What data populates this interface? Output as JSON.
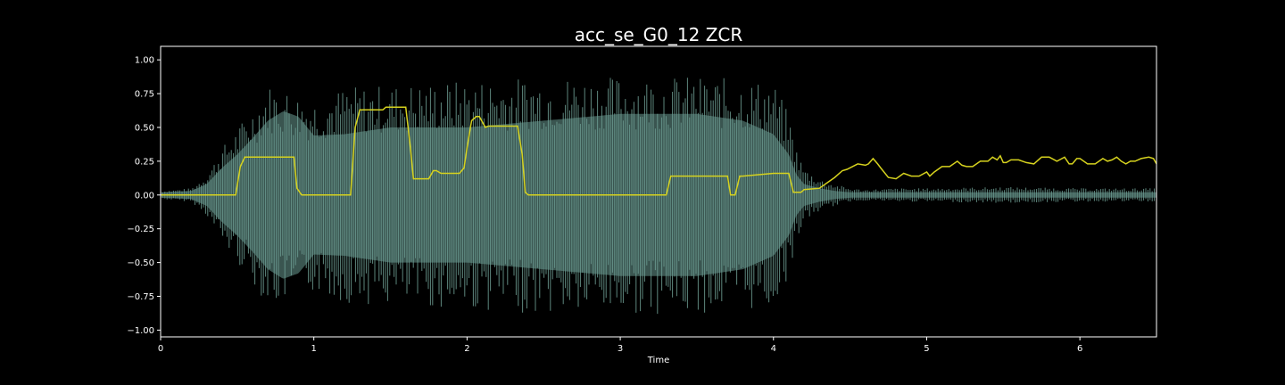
{
  "chart_data": {
    "type": "line",
    "title": "acc_se_G0_12 ZCR",
    "xlabel": "Time",
    "ylabel": "",
    "xlim": [
      0,
      6.5
    ],
    "ylim": [
      -1.05,
      1.1
    ],
    "x_ticks": [
      0,
      1,
      2,
      3,
      4,
      5,
      6
    ],
    "x_tick_labels": [
      "0",
      "1",
      "2",
      "3",
      "4",
      "5",
      "6"
    ],
    "y_ticks": [
      -1.0,
      -0.75,
      -0.5,
      -0.25,
      0.0,
      0.25,
      0.5,
      0.75,
      1.0
    ],
    "y_tick_labels": [
      "−1.00",
      "−0.75",
      "−0.50",
      "−0.25",
      "0.00",
      "0.25",
      "0.50",
      "0.75",
      "1.00"
    ],
    "grid": false,
    "colors": {
      "background": "#000000",
      "axes_edge": "#ffffff",
      "text": "#ffffff",
      "waveform_fill": "#3a5550",
      "waveform_lines": "#6d9e93",
      "zcr_line": "#d6d21e"
    },
    "series": [
      {
        "kind": "waveform_envelope",
        "x": [
          0,
          0.2,
          0.3,
          0.4,
          0.5,
          0.6,
          0.7,
          0.8,
          0.9,
          1.0,
          1.2,
          1.5,
          2.0,
          2.5,
          3.0,
          3.5,
          3.8,
          4.0,
          4.1,
          4.15,
          4.2,
          4.3,
          4.4,
          4.5,
          4.6,
          4.8,
          5.0,
          5.5,
          6.0,
          6.5
        ],
        "peak": [
          0.03,
          0.05,
          0.15,
          0.35,
          0.5,
          0.65,
          0.82,
          0.8,
          0.75,
          0.72,
          0.8,
          0.82,
          0.85,
          0.88,
          0.88,
          0.88,
          0.86,
          0.84,
          0.6,
          0.35,
          0.2,
          0.12,
          0.08,
          0.05,
          0.04,
          0.05,
          0.05,
          0.06,
          0.05,
          0.05
        ],
        "body": [
          0.02,
          0.03,
          0.08,
          0.2,
          0.3,
          0.42,
          0.55,
          0.62,
          0.58,
          0.44,
          0.45,
          0.5,
          0.5,
          0.55,
          0.6,
          0.6,
          0.55,
          0.45,
          0.3,
          0.15,
          0.08,
          0.05,
          0.03,
          0.02,
          0.02,
          0.02,
          0.02,
          0.02,
          0.02,
          0.02
        ]
      },
      {
        "kind": "zcr",
        "x": [
          0,
          0.49,
          0.52,
          0.55,
          0.87,
          0.89,
          0.92,
          1.24,
          1.27,
          1.3,
          1.45,
          1.47,
          1.6,
          1.63,
          1.65,
          1.75,
          1.78,
          1.8,
          1.83,
          1.95,
          1.98,
          2.0,
          2.03,
          2.06,
          2.08,
          2.12,
          2.14,
          2.33,
          2.36,
          2.38,
          2.4,
          3.3,
          3.33,
          3.36,
          3.7,
          3.72,
          3.75,
          3.78,
          3.8,
          4.0,
          4.1,
          4.13,
          4.18,
          4.2,
          4.3,
          4.35,
          4.4,
          4.45,
          4.48,
          4.55,
          4.6,
          4.62,
          4.65,
          4.68,
          4.7,
          4.75,
          4.8,
          4.85,
          4.9,
          4.95,
          5.0,
          5.02,
          5.05,
          5.1,
          5.15,
          5.2,
          5.23,
          5.26,
          5.3,
          5.35,
          5.4,
          5.43,
          5.46,
          5.48,
          5.5,
          5.52,
          5.55,
          5.6,
          5.65,
          5.7,
          5.75,
          5.8,
          5.85,
          5.9,
          5.93,
          5.95,
          5.98,
          6.0,
          6.05,
          6.1,
          6.15,
          6.18,
          6.21,
          6.24,
          6.27,
          6.3,
          6.33,
          6.36,
          6.4,
          6.45,
          6.48,
          6.5
        ],
        "y": [
          0.0,
          0.0,
          0.21,
          0.28,
          0.28,
          0.05,
          0.0,
          0.0,
          0.5,
          0.63,
          0.63,
          0.65,
          0.65,
          0.35,
          0.12,
          0.12,
          0.18,
          0.18,
          0.16,
          0.16,
          0.2,
          0.35,
          0.55,
          0.58,
          0.58,
          0.5,
          0.51,
          0.51,
          0.3,
          0.02,
          0.0,
          0.0,
          0.14,
          0.14,
          0.14,
          0.0,
          0.0,
          0.14,
          0.14,
          0.16,
          0.16,
          0.02,
          0.02,
          0.04,
          0.05,
          0.09,
          0.13,
          0.18,
          0.19,
          0.23,
          0.22,
          0.23,
          0.27,
          0.23,
          0.2,
          0.13,
          0.12,
          0.16,
          0.14,
          0.14,
          0.17,
          0.14,
          0.17,
          0.21,
          0.21,
          0.25,
          0.22,
          0.21,
          0.21,
          0.25,
          0.25,
          0.28,
          0.26,
          0.29,
          0.24,
          0.24,
          0.26,
          0.26,
          0.24,
          0.23,
          0.28,
          0.28,
          0.25,
          0.28,
          0.23,
          0.23,
          0.27,
          0.27,
          0.23,
          0.23,
          0.27,
          0.25,
          0.26,
          0.28,
          0.25,
          0.23,
          0.25,
          0.25,
          0.27,
          0.28,
          0.27,
          0.23
        ]
      }
    ]
  }
}
